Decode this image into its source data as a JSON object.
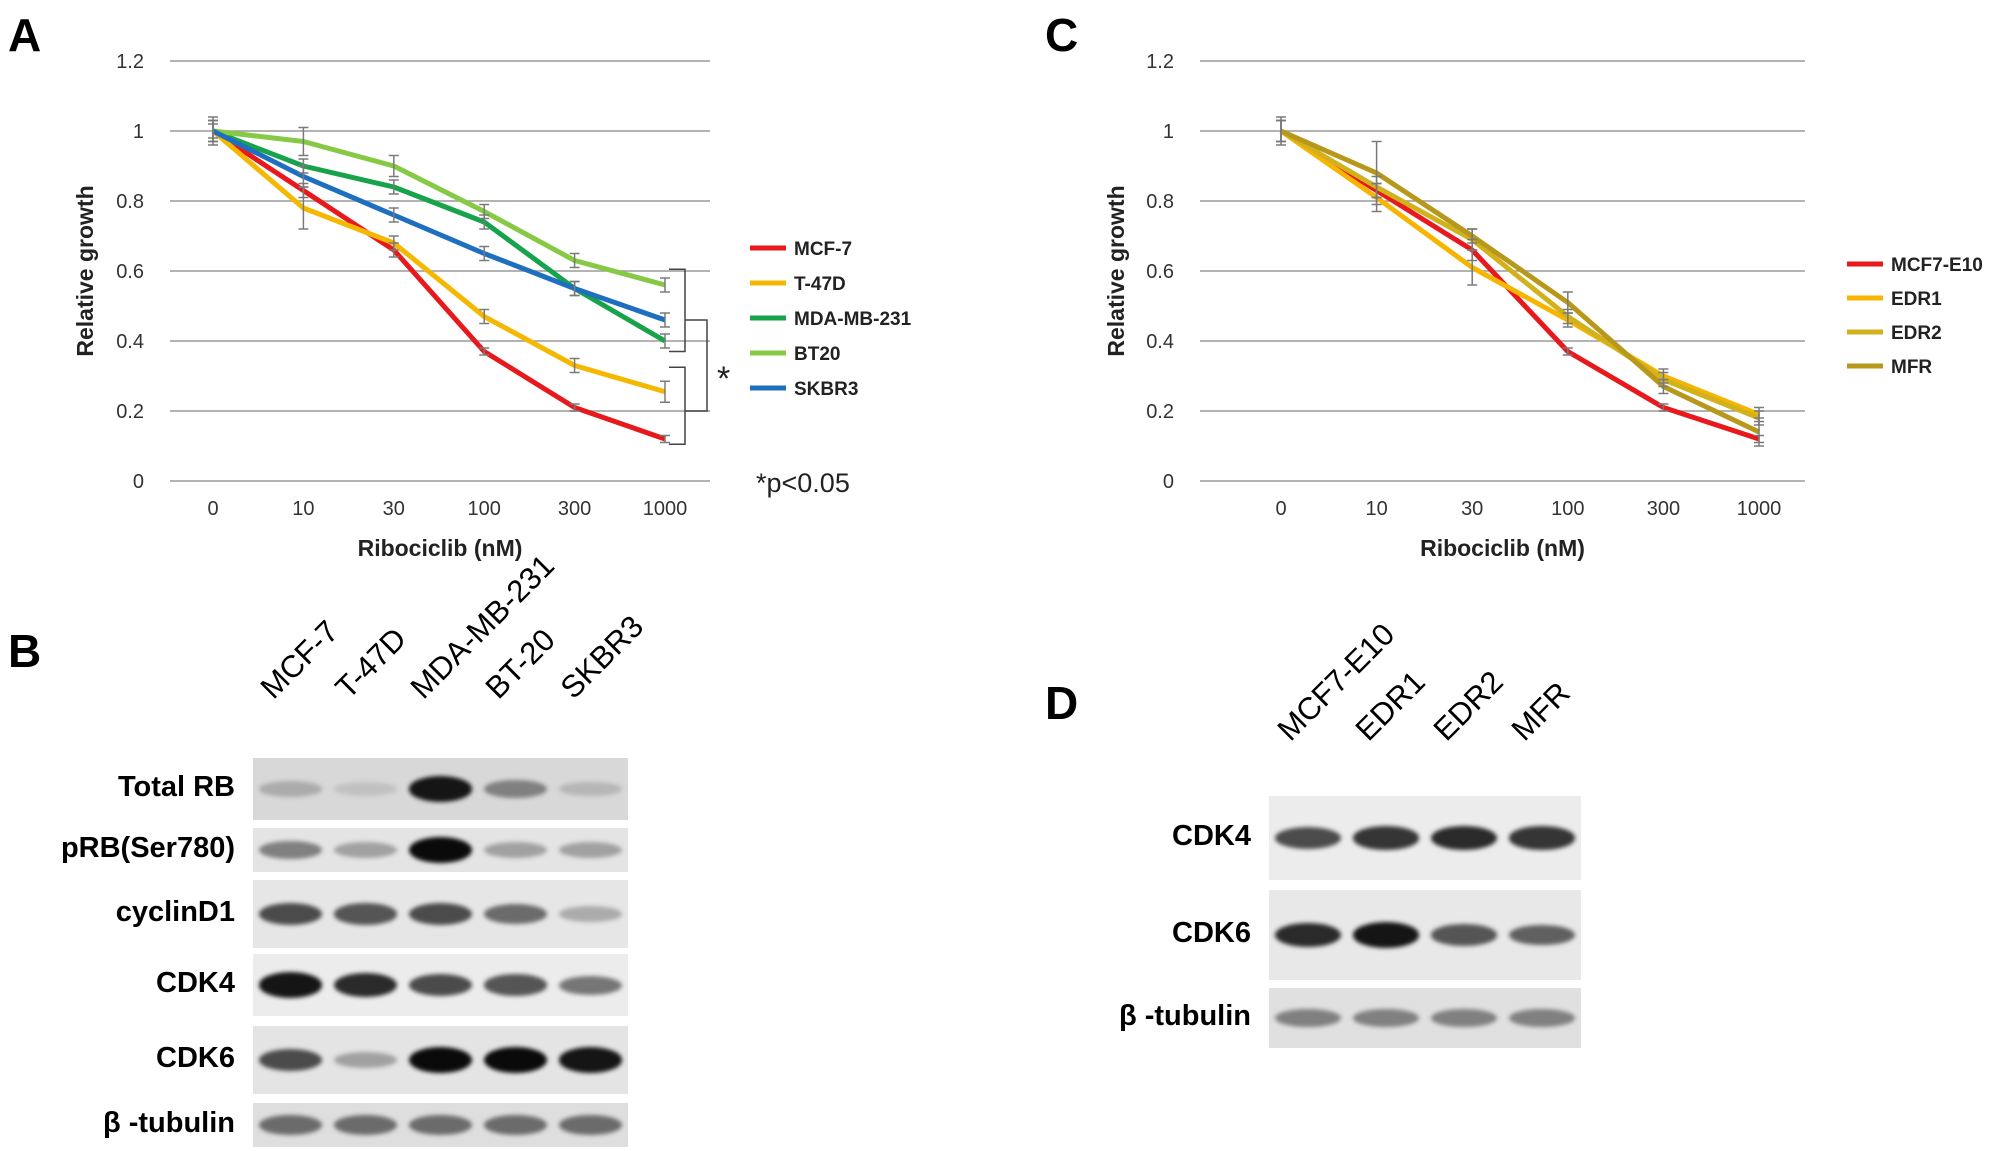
{
  "panels": {
    "A": "A",
    "B": "B",
    "C": "C",
    "D": "D"
  },
  "chart_data": [
    {
      "panel": "A",
      "type": "line",
      "xlabel": "Ribociclib (nM)",
      "ylabel": "Relative growth",
      "categories": [
        "0",
        "10",
        "30",
        "100",
        "300",
        "1000"
      ],
      "ylim": [
        0,
        1.2
      ],
      "yticks": [
        "0",
        "0.2",
        "0.4",
        "0.6",
        "0.8",
        "1",
        "1.2"
      ],
      "grid": true,
      "legend_position": "right",
      "annotation": "*p<0.05",
      "significance_mark": "*",
      "series": [
        {
          "name": "MCF-7",
          "color": "#e8191c",
          "values": [
            1.0,
            0.83,
            0.66,
            0.37,
            0.21,
            0.12
          ],
          "err": [
            0.03,
            0.02,
            0.02,
            0.01,
            0.01,
            0.01
          ]
        },
        {
          "name": "T-47D",
          "color": "#f5b800",
          "values": [
            1.0,
            0.78,
            0.68,
            0.47,
            0.33,
            0.255
          ],
          "err": [
            0.04,
            0.06,
            0.02,
            0.02,
            0.02,
            0.03
          ]
        },
        {
          "name": "MDA-MB-231",
          "color": "#16a34a",
          "values": [
            1.0,
            0.9,
            0.84,
            0.74,
            0.55,
            0.4
          ],
          "err": [
            0.03,
            0.02,
            0.02,
            0.02,
            0.02,
            0.02
          ]
        },
        {
          "name": "BT20",
          "color": "#86c944",
          "values": [
            1.0,
            0.97,
            0.9,
            0.77,
            0.63,
            0.56
          ],
          "err": [
            0.02,
            0.04,
            0.03,
            0.02,
            0.02,
            0.02
          ]
        },
        {
          "name": "SKBR3",
          "color": "#1f6fc0",
          "values": [
            1.0,
            0.87,
            0.76,
            0.65,
            0.55,
            0.46
          ],
          "err": [
            0.03,
            0.03,
            0.02,
            0.02,
            0.02,
            0.02
          ]
        }
      ]
    },
    {
      "panel": "C",
      "type": "line",
      "xlabel": "Ribociclib (nM)",
      "ylabel": "Relative growth",
      "categories": [
        "0",
        "10",
        "30",
        "100",
        "300",
        "1000"
      ],
      "ylim": [
        0,
        1.2
      ],
      "yticks": [
        "0",
        "0.2",
        "0.4",
        "0.6",
        "0.8",
        "1",
        "1.2"
      ],
      "grid": true,
      "legend_position": "right",
      "series": [
        {
          "name": "MCF7-E10",
          "color": "#e8191c",
          "values": [
            1.0,
            0.83,
            0.66,
            0.37,
            0.21,
            0.12
          ],
          "err": [
            0.03,
            0.02,
            0.03,
            0.01,
            0.01,
            0.01
          ]
        },
        {
          "name": "EDR1",
          "color": "#f7b500",
          "values": [
            1.0,
            0.81,
            0.61,
            0.46,
            0.3,
            0.19
          ],
          "err": [
            0.04,
            0.04,
            0.05,
            0.02,
            0.02,
            0.02
          ]
        },
        {
          "name": "EDR2",
          "color": "#d2b21c",
          "values": [
            1.0,
            0.84,
            0.69,
            0.47,
            0.29,
            0.18
          ],
          "err": [
            0.03,
            0.03,
            0.03,
            0.02,
            0.02,
            0.02
          ]
        },
        {
          "name": "MFR",
          "color": "#b8981a",
          "values": [
            1.0,
            0.88,
            0.7,
            0.51,
            0.27,
            0.14
          ],
          "err": [
            0.03,
            0.09,
            0.02,
            0.03,
            0.02,
            0.04
          ]
        }
      ]
    }
  ],
  "blot_B": {
    "lanes": [
      "MCF-7",
      "T-47D",
      "MDA-MB-231",
      "BT-20",
      "SKBR3"
    ],
    "rows": [
      "Total RB",
      "pRB(Ser780)",
      "cyclinD1",
      "CDK4",
      "CDK6",
      "β -tubulin"
    ],
    "intensities": [
      [
        0.25,
        0.15,
        0.95,
        0.45,
        0.2
      ],
      [
        0.45,
        0.3,
        1.0,
        0.3,
        0.3
      ],
      [
        0.7,
        0.65,
        0.7,
        0.55,
        0.25
      ],
      [
        0.95,
        0.85,
        0.7,
        0.65,
        0.5
      ],
      [
        0.7,
        0.3,
        1.0,
        1.0,
        0.95
      ],
      [
        0.55,
        0.55,
        0.55,
        0.55,
        0.55
      ]
    ]
  },
  "blot_D": {
    "lanes": [
      "MCF7-E10",
      "EDR1",
      "EDR2",
      "MFR"
    ],
    "rows": [
      "CDK4",
      "CDK6",
      "β -tubulin"
    ],
    "intensities": [
      [
        0.7,
        0.8,
        0.85,
        0.8
      ],
      [
        0.85,
        0.95,
        0.65,
        0.6
      ],
      [
        0.45,
        0.45,
        0.45,
        0.45
      ]
    ]
  }
}
